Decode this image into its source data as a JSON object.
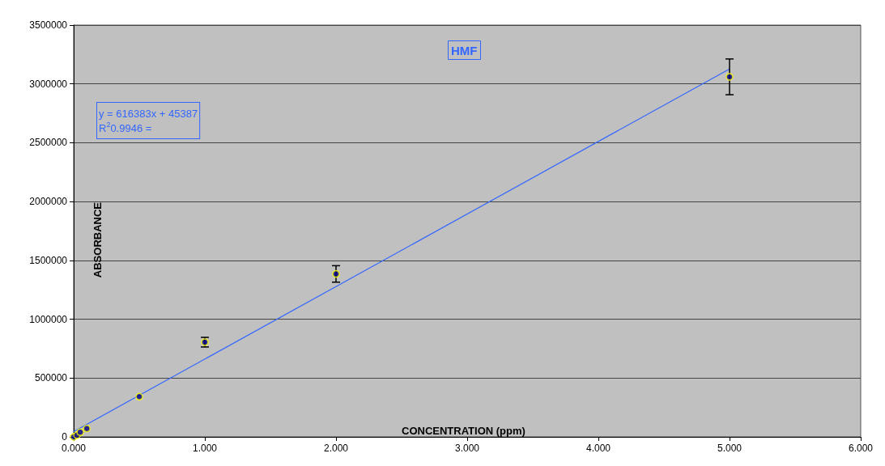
{
  "chart_data": {
    "type": "scatter",
    "title": "HMF",
    "xlabel": "CONCENTRATION (ppm)",
    "ylabel": "ABSORBANCE",
    "annotations": [
      "y = 616383x + 45387\nR$^{2}$0.9946 ="
    ],
    "series": [
      {
        "color": "#000080",
        "x": [
          0,
          0.025,
          0.05,
          0.1,
          0.5,
          1,
          2,
          5
        ],
        "values": [
          0,
          15000,
          40000,
          71000,
          342000,
          805000,
          1385000,
          3060000
        ],
        "errors": [
          null,
          null,
          null,
          null,
          null,
          41000,
          70000,
          152000
        ]
      },
      {
        "type": "line",
        "marker": "none",
        "color": "#3366ff",
        "x": [
          0,
          5
        ],
        "values": [
          45000,
          3127000
        ]
      }
    ],
    "xlim": [
      0,
      6
    ],
    "xticks": [
      {
        "value": 0,
        "label": "0.000"
      },
      {
        "value": 1,
        "label": "1.000"
      },
      {
        "value": 2,
        "label": "2.000"
      },
      {
        "value": 3,
        "label": "3.000"
      },
      {
        "value": 4,
        "label": "4.000"
      },
      {
        "value": 5,
        "label": "5.000"
      },
      {
        "value": 6,
        "label": "6.000"
      }
    ],
    "ylim": [
      0,
      3500000
    ],
    "yticks": [
      0,
      500000,
      1000000,
      1500000,
      2000000,
      2500000,
      3000000,
      3500000
    ],
    "grid": "y",
    "marker": "circle",
    "line_style": "solid"
  }
}
